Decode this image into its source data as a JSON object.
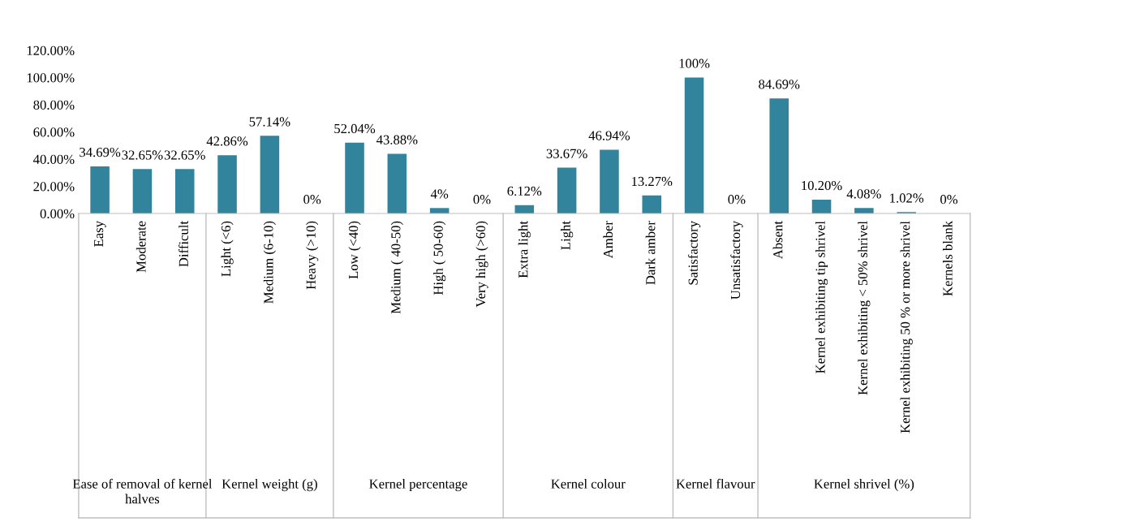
{
  "chart_data": {
    "type": "bar",
    "categories": [
      "Easy",
      "Moderate",
      "Difficult",
      "Light (<6)",
      "Medium (6-10)",
      "Heavy (>10)",
      "Low (<40)",
      "Medium ( 40-50)",
      "High ( 50-60)",
      "Very high (>60)",
      "Extra light",
      "Light",
      "Amber",
      "Dark amber",
      "Satisfactory",
      "Unsatisfactory",
      "Absent",
      "Kernel exhibiting tip shrivel",
      "Kernel exhibiting < 50% shrivel",
      "Kernel exhibiting 50 % or more shrivel",
      "Kernels blank"
    ],
    "values": [
      34.69,
      32.65,
      32.65,
      42.86,
      57.14,
      0,
      52.04,
      43.88,
      4,
      0,
      6.12,
      33.67,
      46.94,
      13.27,
      100,
      0,
      84.69,
      10.2,
      4.08,
      1.02,
      0
    ],
    "value_labels": [
      "34.69%",
      "32.65%",
      "32.65%",
      "42.86%",
      "57.14%",
      "0%",
      "52.04%",
      "43.88%",
      "4%",
      "0%",
      "6.12%",
      "33.67%",
      "46.94%",
      "13.27%",
      "100%",
      "0%",
      "84.69%",
      "10.20%",
      "4.08%",
      "1.02%",
      "0%"
    ],
    "color": "#31849b",
    "ylim": [
      0,
      120
    ],
    "yticks": [
      {
        "value": 0,
        "label": "0.00%"
      },
      {
        "value": 20,
        "label": "20.00%"
      },
      {
        "value": 40,
        "label": "40.00%"
      },
      {
        "value": 60,
        "label": "60.00%"
      },
      {
        "value": 80,
        "label": "80.00%"
      },
      {
        "value": 100,
        "label": "100.00%"
      },
      {
        "value": 120,
        "label": "120.00%"
      }
    ],
    "grid": false,
    "annotations": [
      "Ease of removal of kernel halves",
      "Kernel weight (g)",
      "Kernel percentage",
      "Kernel colour",
      "Kernel flavour",
      "Kernel shrivel (%)"
    ]
  }
}
